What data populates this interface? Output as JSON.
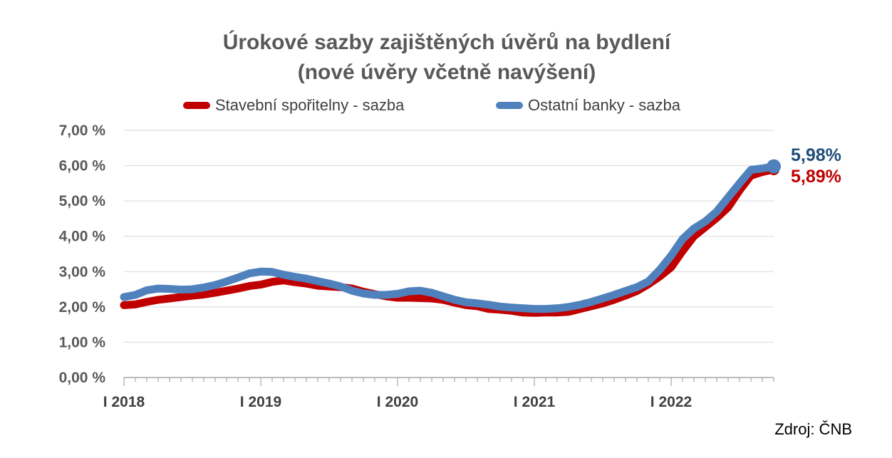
{
  "chart_data": {
    "type": "line",
    "title": "Úrokové sazby zajištěných úvěrů na bydlení",
    "subtitle": "(nové úvěry včetně navýšení)",
    "source": "Zdroj: ČNB",
    "y_tick_labels": [
      "0,00 %",
      "1,00 %",
      "2,00 %",
      "3,00 %",
      "4,00 %",
      "5,00 %",
      "6,00 %",
      "7,00 %"
    ],
    "x_tick_labels": [
      "I 2018",
      "I 2019",
      "I 2020",
      "I 2021",
      "I 2022"
    ],
    "ylim": [
      0,
      7
    ],
    "grid": true,
    "legend_position": "top",
    "x_unit": "month",
    "x_start": "2018-01",
    "series": [
      {
        "name": "Stavební spořitelny - sazba",
        "color": "#C00000",
        "end_label": "5,89%",
        "values": [
          2.05,
          2.07,
          2.14,
          2.2,
          2.24,
          2.28,
          2.32,
          2.35,
          2.4,
          2.46,
          2.52,
          2.59,
          2.63,
          2.71,
          2.75,
          2.7,
          2.66,
          2.6,
          2.58,
          2.56,
          2.52,
          2.43,
          2.36,
          2.3,
          2.26,
          2.26,
          2.25,
          2.24,
          2.2,
          2.12,
          2.05,
          2.02,
          1.94,
          1.92,
          1.89,
          1.84,
          1.83,
          1.84,
          1.84,
          1.86,
          1.94,
          2.02,
          2.1,
          2.2,
          2.32,
          2.45,
          2.64,
          2.86,
          3.12,
          3.58,
          4.0,
          4.26,
          4.52,
          4.82,
          5.3,
          5.72,
          5.82,
          5.89
        ]
      },
      {
        "name": "Ostatní banky - sazba",
        "color": "#4F81BD",
        "end_label": "5,98%",
        "values": [
          2.28,
          2.34,
          2.47,
          2.52,
          2.51,
          2.49,
          2.5,
          2.55,
          2.62,
          2.72,
          2.83,
          2.95,
          3.0,
          2.99,
          2.91,
          2.85,
          2.8,
          2.73,
          2.66,
          2.58,
          2.46,
          2.38,
          2.34,
          2.34,
          2.37,
          2.44,
          2.46,
          2.4,
          2.3,
          2.2,
          2.13,
          2.1,
          2.06,
          2.01,
          1.98,
          1.96,
          1.94,
          1.94,
          1.96,
          2.0,
          2.06,
          2.14,
          2.24,
          2.34,
          2.45,
          2.56,
          2.72,
          3.05,
          3.45,
          3.92,
          4.22,
          4.42,
          4.7,
          5.1,
          5.5,
          5.88,
          5.92,
          5.98
        ]
      }
    ]
  }
}
